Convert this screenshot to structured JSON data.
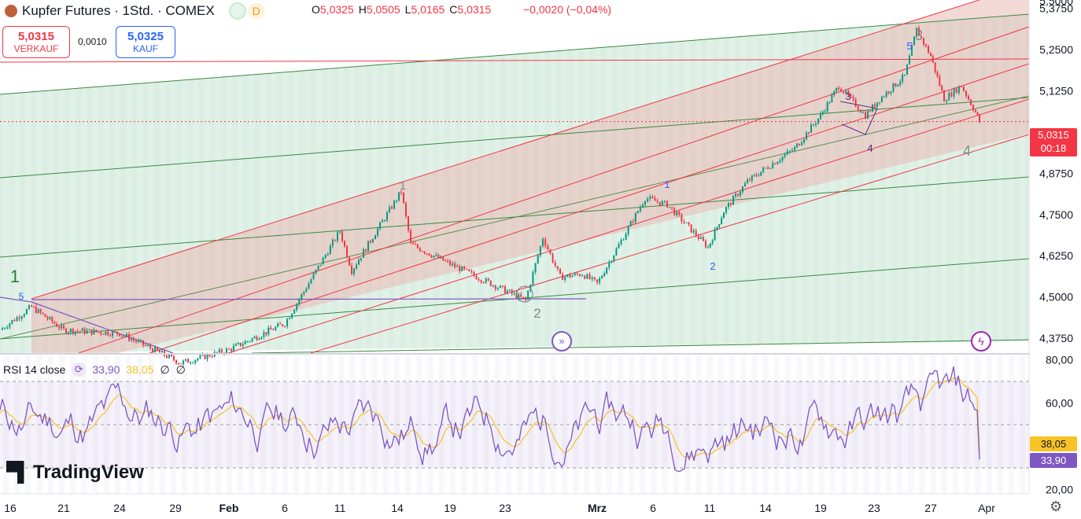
{
  "header": {
    "symbol_title": "Kupfer Futures · 1Std. · COMEX",
    "badge_d": "D",
    "ohlc": [
      {
        "k": "O",
        "v": "5,0325"
      },
      {
        "k": "H",
        "v": "5,0505"
      },
      {
        "k": "L",
        "v": "5,0165"
      },
      {
        "k": "C",
        "v": "5,0315"
      }
    ],
    "change": "−0,0020 (−0,04%)"
  },
  "trade": {
    "sell_price": "5,0315",
    "sell_label": "VERKAUF",
    "spread": "0,0010",
    "buy_price": "5,0325",
    "buy_label": "KAUF"
  },
  "rsi": {
    "label": "RSI 14 close",
    "value": "33,90",
    "ma_value": "38,05",
    "na1": "∅",
    "na2": "∅"
  },
  "price_axis": {
    "current_price": "5,0315",
    "countdown": "00:18",
    "rsi_tag_ma": "38,05",
    "rsi_tag": "33,90"
  },
  "colors": {
    "candle_up": "#089981",
    "candle_down": "#f23645",
    "channel_red": "#f23645",
    "channel_green": "#2e7d32",
    "rsi_line": "#7e57c2",
    "rsi_ma": "#f7c325"
  },
  "wave_labels": [
    {
      "text": "1",
      "role": "wave-1-major"
    },
    {
      "text": "5",
      "role": "wave-5-minor"
    },
    {
      "text": "1",
      "role": "wave-1-feb"
    },
    {
      "text": "2",
      "role": "wave-2-feb"
    },
    {
      "text": "1",
      "role": "wave-1-mar"
    },
    {
      "text": "2",
      "role": "wave-2-mar"
    },
    {
      "text": "3",
      "role": "wave-3-minor"
    },
    {
      "text": "4",
      "role": "wave-4-minor"
    },
    {
      "text": "5",
      "role": "wave-5-top"
    },
    {
      "text": "3",
      "role": "wave-3-major"
    },
    {
      "text": "4",
      "role": "wave-4-major"
    }
  ],
  "brand": "TradingView",
  "chart_data": [
    {
      "type": "candlestick",
      "title": "Kupfer Futures · 1Std. · COMEX",
      "y_ticks": [
        "5,3750",
        "5,2500",
        "5,1250",
        "5,0000",
        "4,8750",
        "4,7500",
        "4,6250",
        "4,5000",
        "4,3750"
      ],
      "x_ticks": [
        "16",
        "21",
        "24",
        "29",
        "Feb",
        "6",
        "11",
        "14",
        "19",
        "23",
        "Mrz",
        "6",
        "11",
        "14",
        "19",
        "23",
        "27",
        "Apr"
      ],
      "ylim": [
        4.33,
        5.4
      ],
      "key_points": [
        {
          "x": "16",
          "y": 4.4
        },
        {
          "x": "17",
          "y": 4.47
        },
        {
          "x": "21",
          "y": 4.4
        },
        {
          "x": "24",
          "y": 4.39
        },
        {
          "x": "29",
          "y": 4.3
        },
        {
          "x": "Feb",
          "y": 4.34
        },
        {
          "x": "6",
          "y": 4.42
        },
        {
          "x": "11",
          "y": 4.7
        },
        {
          "x": "12",
          "y": 4.58
        },
        {
          "x": "14",
          "y": 4.82
        },
        {
          "x": "15",
          "y": 4.66
        },
        {
          "x": "19",
          "y": 4.6
        },
        {
          "x": "23",
          "y": 4.52
        },
        {
          "x": "24",
          "y": 4.49
        },
        {
          "x": "25",
          "y": 4.68
        },
        {
          "x": "26",
          "y": 4.56
        },
        {
          "x": "28",
          "y": 4.57
        },
        {
          "x": "Mrz",
          "y": 4.54
        },
        {
          "x": "5",
          "y": 4.8
        },
        {
          "x": "6",
          "y": 4.78
        },
        {
          "x": "10",
          "y": 4.65
        },
        {
          "x": "11",
          "y": 4.76
        },
        {
          "x": "13",
          "y": 4.85
        },
        {
          "x": "14",
          "y": 4.89
        },
        {
          "x": "17",
          "y": 4.95
        },
        {
          "x": "19",
          "y": 5.05
        },
        {
          "x": "20",
          "y": 5.14
        },
        {
          "x": "22",
          "y": 5.05
        },
        {
          "x": "23",
          "y": 5.1
        },
        {
          "x": "25",
          "y": 5.17
        },
        {
          "x": "26",
          "y": 5.31
        },
        {
          "x": "27",
          "y": 5.23
        },
        {
          "x": "28",
          "y": 5.1
        },
        {
          "x": "29",
          "y": 5.14
        },
        {
          "x": "30",
          "y": 5.06
        },
        {
          "x": "31",
          "y": 5.0315
        }
      ],
      "last_price": 5.0315
    },
    {
      "type": "line",
      "title": "RSI 14 close",
      "y_ticks": [
        "80,00",
        "60,00",
        "40,00",
        "20,00"
      ],
      "ylim": [
        18,
        82
      ],
      "bands": [
        70,
        50,
        30
      ],
      "series": [
        {
          "name": "RSI 14 close",
          "last": 33.9
        },
        {
          "name": "",
          "last": 38.05
        }
      ]
    }
  ]
}
